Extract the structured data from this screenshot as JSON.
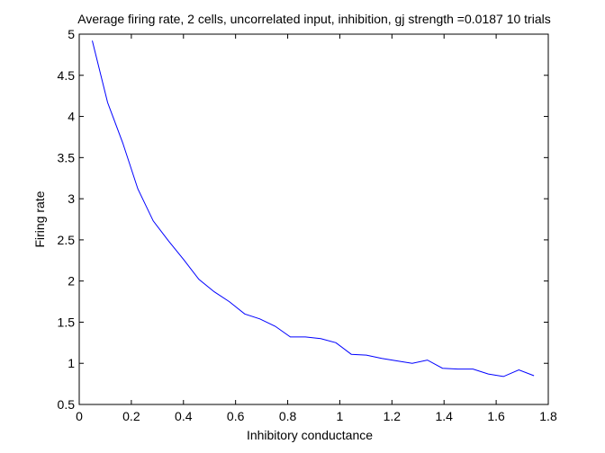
{
  "chart_data": {
    "type": "line",
    "title": "Average firing rate, 2 cells, uncorrelated input, inhibition, gj strength =0.0187 10 trials",
    "xlabel": "Inhibitory conductance",
    "ylabel": "Firing rate",
    "xlim": [
      0,
      1.8
    ],
    "ylim": [
      0.5,
      5
    ],
    "xticks": [
      0,
      0.2,
      0.4,
      0.6,
      0.8,
      1,
      1.2,
      1.4,
      1.6,
      1.8
    ],
    "yticks": [
      0.5,
      1,
      1.5,
      2,
      2.5,
      3,
      3.5,
      4,
      4.5,
      5
    ],
    "xtick_labels": [
      "0",
      "0.2",
      "0.4",
      "0.6",
      "0.8",
      "1",
      "1.2",
      "1.4",
      "1.6",
      "1.8"
    ],
    "ytick_labels": [
      "0.5",
      "1",
      "1.5",
      "2",
      "2.5",
      "3",
      "3.5",
      "4",
      "4.5",
      "5"
    ],
    "grid": false,
    "series": [
      {
        "color": "#0000ff",
        "x": [
          0.05,
          0.109,
          0.167,
          0.225,
          0.284,
          0.342,
          0.401,
          0.459,
          0.518,
          0.576,
          0.635,
          0.693,
          0.752,
          0.81,
          0.868,
          0.927,
          0.985,
          1.044,
          1.102,
          1.161,
          1.219,
          1.278,
          1.336,
          1.394,
          1.453,
          1.511,
          1.57,
          1.628,
          1.687,
          1.745
        ],
        "y": [
          4.92,
          4.17,
          3.68,
          3.12,
          2.73,
          2.49,
          2.26,
          2.02,
          1.87,
          1.75,
          1.6,
          1.54,
          1.45,
          1.32,
          1.32,
          1.3,
          1.25,
          1.11,
          1.1,
          1.06,
          1.03,
          1.0,
          1.04,
          0.94,
          0.93,
          0.93,
          0.87,
          0.84,
          0.92,
          0.85
        ]
      }
    ]
  }
}
